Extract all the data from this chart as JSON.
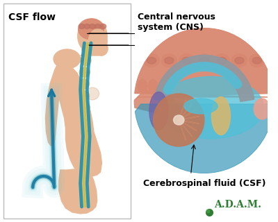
{
  "background_color": "#ffffff",
  "figure_width": 4.0,
  "figure_height": 3.2,
  "dpi": 100,
  "labels": {
    "csf_flow": "CSF flow",
    "cns": "Central nervous\nsystem (CNS)",
    "csf_full": "Cerebrospinal fluid (CSF)",
    "adam": "A.D.A.M."
  },
  "colors": {
    "skin": "#e8b896",
    "skin_shadow": "#d4a070",
    "spine_tan": "#c8a060",
    "spine_light": "#e0c090",
    "csf_teal": "#2090a8",
    "csf_light": "#60c8d8",
    "csf_flow_arrow": "#1878a0",
    "csf_flow_light": "#a0d8e8",
    "nerve_yellow": "#c8c040",
    "brain_pink": "#d88870",
    "brain_mid": "#c07060",
    "brain_dark": "#a85848",
    "gray_matter": "#9098a0",
    "csf_blue": "#3898b8",
    "csf_bright": "#50c0d8",
    "cerebellum": "#c07858",
    "brainstem": "#d4b870",
    "purple": "#7060a8",
    "pink_tissue": "#e8a090",
    "border": "#bbbbbb",
    "adam_green": "#2e7d32",
    "black": "#000000",
    "white": "#ffffff"
  }
}
